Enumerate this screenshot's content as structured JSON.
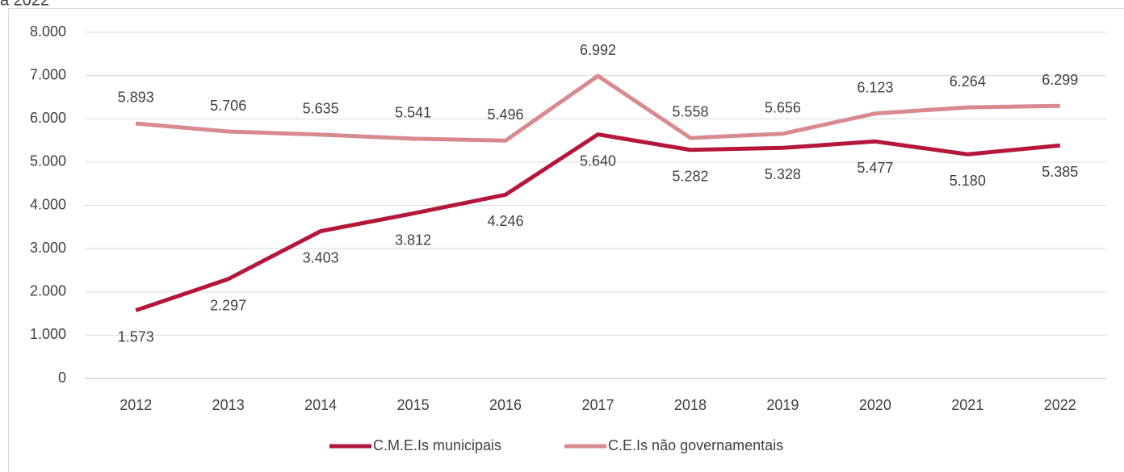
{
  "chart_data": {
    "type": "line",
    "title": "a 2022",
    "categories": [
      "2012",
      "2013",
      "2014",
      "2015",
      "2016",
      "2017",
      "2018",
      "2019",
      "2020",
      "2021",
      "2022"
    ],
    "series": [
      {
        "name": "C.M.E.Is municipais",
        "color": "#b5173b",
        "values": [
          1573,
          2297,
          3403,
          3812,
          4246,
          5640,
          5282,
          5328,
          5477,
          5180,
          5385
        ],
        "value_labels": [
          "1.573",
          "2.297",
          "3.403",
          "3.812",
          "4.246",
          "5.640",
          "5.282",
          "5.328",
          "5.477",
          "5.180",
          "5.385"
        ]
      },
      {
        "name": "C.E.Is não governamentais",
        "color": "#d98a8f",
        "values": [
          5893,
          5706,
          5635,
          5541,
          5496,
          6992,
          5558,
          5656,
          6123,
          6264,
          6299
        ],
        "value_labels": [
          "5.893",
          "5.706",
          "5.635",
          "5.541",
          "5.496",
          "6.992",
          "5.558",
          "5.656",
          "6.123",
          "6.264",
          "6.299"
        ]
      }
    ],
    "ylim": [
      0,
      8000
    ],
    "yticks": [
      0,
      {
        "value": 1000,
        "label": "1.000"
      },
      {
        "value": 2000,
        "label": "2.000"
      },
      {
        "value": 3000,
        "label": "3.000"
      },
      {
        "value": 4000,
        "label": "4.000"
      },
      {
        "value": 5000,
        "label": "5.000"
      },
      {
        "value": 6000,
        "label": "6.000"
      },
      {
        "value": 7000,
        "label": "7.000"
      },
      {
        "value": 8000,
        "label": "8.000"
      }
    ],
    "grid": true,
    "legend": "bottom"
  }
}
